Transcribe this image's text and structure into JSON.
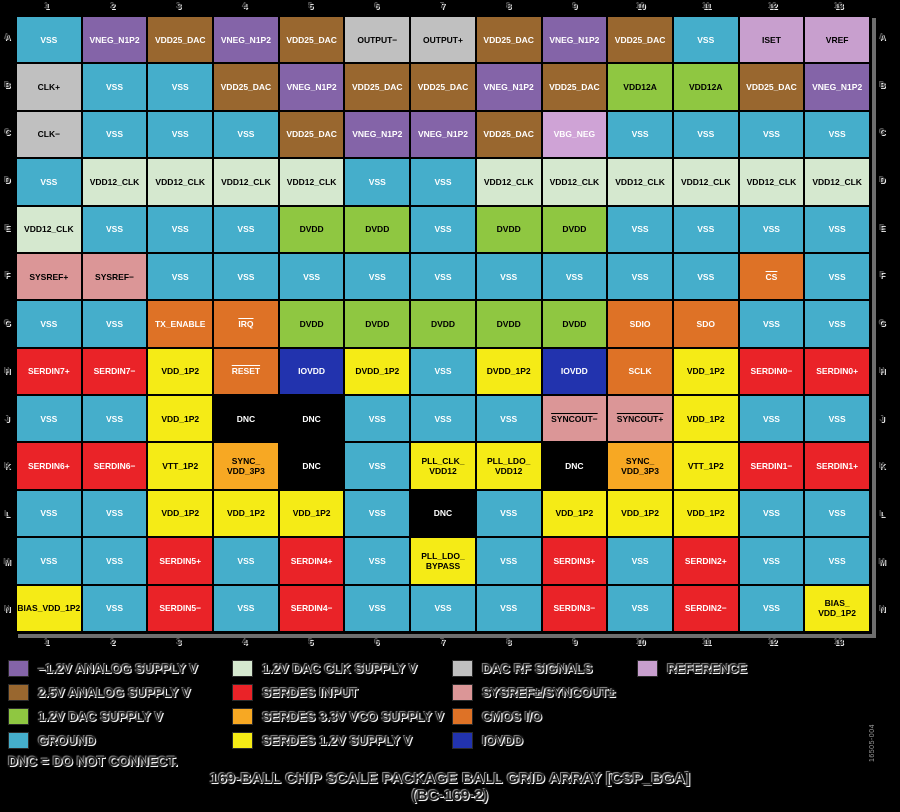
{
  "grid": {
    "col_labels": [
      "1",
      "2",
      "3",
      "4",
      "5",
      "6",
      "7",
      "8",
      "9",
      "10",
      "11",
      "12",
      "13"
    ],
    "row_labels": [
      "A",
      "B",
      "C",
      "D",
      "E",
      "F",
      "G",
      "H",
      "J",
      "K",
      "L",
      "M",
      "N"
    ],
    "rows": [
      {
        "label": "A",
        "cells": [
          [
            "VSS",
            "gnd"
          ],
          [
            "VNEG_N1P2",
            "neg"
          ],
          [
            "VDD25_DAC",
            "v25"
          ],
          [
            "VNEG_N1P2",
            "neg"
          ],
          [
            "VDD25_DAC",
            "v25"
          ],
          [
            "OUTPUT−",
            "rf"
          ],
          [
            "OUTPUT+",
            "rf"
          ],
          [
            "VDD25_DAC",
            "v25"
          ],
          [
            "VNEG_N1P2",
            "neg"
          ],
          [
            "VDD25_DAC",
            "v25"
          ],
          [
            "VSS",
            "gnd"
          ],
          [
            "ISET",
            "ref"
          ],
          [
            "VREF",
            "ref"
          ]
        ]
      },
      {
        "label": "B",
        "cells": [
          [
            "CLK+",
            "rf"
          ],
          [
            "VSS",
            "gnd"
          ],
          [
            "VSS",
            "gnd"
          ],
          [
            "VDD25_DAC",
            "v25"
          ],
          [
            "VNEG_N1P2",
            "neg"
          ],
          [
            "VDD25_DAC",
            "v25"
          ],
          [
            "VDD25_DAC",
            "v25"
          ],
          [
            "VNEG_N1P2",
            "neg"
          ],
          [
            "VDD25_DAC",
            "v25"
          ],
          [
            "VDD12A",
            "dac"
          ],
          [
            "VDD12A",
            "dac"
          ],
          [
            "VDD25_DAC",
            "v25"
          ],
          [
            "VNEG_N1P2",
            "neg"
          ]
        ]
      },
      {
        "label": "C",
        "cells": [
          [
            "CLK−",
            "rf"
          ],
          [
            "VSS",
            "gnd"
          ],
          [
            "VSS",
            "gnd"
          ],
          [
            "VSS",
            "gnd"
          ],
          [
            "VDD25_DAC",
            "v25"
          ],
          [
            "VNEG_N1P2",
            "neg"
          ],
          [
            "VNEG_N1P2",
            "neg"
          ],
          [
            "VDD25_DAC",
            "v25"
          ],
          [
            "VBG_NEG",
            "refw"
          ],
          [
            "VSS",
            "gnd"
          ],
          [
            "VSS",
            "gnd"
          ],
          [
            "VSS",
            "gnd"
          ],
          [
            "VSS",
            "gnd"
          ]
        ]
      },
      {
        "label": "D",
        "cells": [
          [
            "VSS",
            "gnd"
          ],
          [
            "VDD12_CLK",
            "clk"
          ],
          [
            "VDD12_CLK",
            "clk"
          ],
          [
            "VDD12_CLK",
            "clk"
          ],
          [
            "VDD12_CLK",
            "clk"
          ],
          [
            "VSS",
            "gnd"
          ],
          [
            "VSS",
            "gnd"
          ],
          [
            "VDD12_CLK",
            "clk"
          ],
          [
            "VDD12_CLK",
            "clk"
          ],
          [
            "VDD12_CLK",
            "clk"
          ],
          [
            "VDD12_CLK",
            "clk"
          ],
          [
            "VDD12_CLK",
            "clk"
          ],
          [
            "VDD12_CLK",
            "clk"
          ]
        ]
      },
      {
        "label": "E",
        "cells": [
          [
            "VDD12_CLK",
            "clk"
          ],
          [
            "VSS",
            "gnd"
          ],
          [
            "VSS",
            "gnd"
          ],
          [
            "VSS",
            "gnd"
          ],
          [
            "DVDD",
            "dac"
          ],
          [
            "DVDD",
            "dac"
          ],
          [
            "VSS",
            "gnd"
          ],
          [
            "DVDD",
            "dac"
          ],
          [
            "DVDD",
            "dac"
          ],
          [
            "VSS",
            "gnd"
          ],
          [
            "VSS",
            "gnd"
          ],
          [
            "VSS",
            "gnd"
          ],
          [
            "VSS",
            "gnd"
          ]
        ]
      },
      {
        "label": "F",
        "cells": [
          [
            "SYSREF+",
            "pink"
          ],
          [
            "SYSREF−",
            "pink"
          ],
          [
            "VSS",
            "gnd"
          ],
          [
            "VSS",
            "gnd"
          ],
          [
            "VSS",
            "gnd"
          ],
          [
            "VSS",
            "gnd"
          ],
          [
            "VSS",
            "gnd"
          ],
          [
            "VSS",
            "gnd"
          ],
          [
            "VSS",
            "gnd"
          ],
          [
            "VSS",
            "gnd"
          ],
          [
            "VSS",
            "gnd"
          ],
          [
            "CS",
            "cmos",
            "ov"
          ],
          [
            "VSS",
            "gnd"
          ]
        ]
      },
      {
        "label": "G",
        "cells": [
          [
            "VSS",
            "gnd"
          ],
          [
            "VSS",
            "gnd"
          ],
          [
            "TX_ENABLE",
            "cmos"
          ],
          [
            "IRQ",
            "cmos",
            "ov"
          ],
          [
            "DVDD",
            "dac"
          ],
          [
            "DVDD",
            "dac"
          ],
          [
            "DVDD",
            "dac"
          ],
          [
            "DVDD",
            "dac"
          ],
          [
            "DVDD",
            "dac"
          ],
          [
            "SDIO",
            "cmos"
          ],
          [
            "SDO",
            "cmos"
          ],
          [
            "VSS",
            "gnd"
          ],
          [
            "VSS",
            "gnd"
          ]
        ]
      },
      {
        "label": "H",
        "cells": [
          [
            "SERDIN7+",
            "ser"
          ],
          [
            "SERDIN7−",
            "ser"
          ],
          [
            "VDD_1P2",
            "y12"
          ],
          [
            "RESET",
            "cmos",
            "ov"
          ],
          [
            "IOVDD",
            "iovdd"
          ],
          [
            "DVDD_1P2",
            "y12"
          ],
          [
            "VSS",
            "gnd"
          ],
          [
            "DVDD_1P2",
            "y12"
          ],
          [
            "IOVDD",
            "iovdd"
          ],
          [
            "SCLK",
            "cmos"
          ],
          [
            "VDD_1P2",
            "y12"
          ],
          [
            "SERDIN0−",
            "ser"
          ],
          [
            "SERDIN0+",
            "ser"
          ]
        ]
      },
      {
        "label": "J",
        "cells": [
          [
            "VSS",
            "gnd"
          ],
          [
            "VSS",
            "gnd"
          ],
          [
            "VDD_1P2",
            "y12"
          ],
          [
            "DNC",
            "dnc"
          ],
          [
            "DNC",
            "dnc"
          ],
          [
            "VSS",
            "gnd"
          ],
          [
            "VSS",
            "gnd"
          ],
          [
            "VSS",
            "gnd"
          ],
          [
            "SYNCOUT−",
            "pink",
            "ov"
          ],
          [
            "SYNCOUT+",
            "pink",
            "ov"
          ],
          [
            "VDD_1P2",
            "y12"
          ],
          [
            "VSS",
            "gnd"
          ],
          [
            "VSS",
            "gnd"
          ]
        ]
      },
      {
        "label": "K",
        "cells": [
          [
            "SERDIN6+",
            "ser"
          ],
          [
            "SERDIN6−",
            "ser"
          ],
          [
            "VTT_1P2",
            "y12"
          ],
          [
            "SYNC_\nVDD_3P3",
            "vco"
          ],
          [
            "DNC",
            "dnc"
          ],
          [
            "VSS",
            "gnd"
          ],
          [
            "PLL_CLK_\nVDD12",
            "y12"
          ],
          [
            "PLL_LDO_\nVDD12",
            "y12"
          ],
          [
            "DNC",
            "dnc"
          ],
          [
            "SYNC_\nVDD_3P3",
            "vco"
          ],
          [
            "VTT_1P2",
            "y12"
          ],
          [
            "SERDIN1−",
            "ser"
          ],
          [
            "SERDIN1+",
            "ser"
          ]
        ]
      },
      {
        "label": "L",
        "cells": [
          [
            "VSS",
            "gnd"
          ],
          [
            "VSS",
            "gnd"
          ],
          [
            "VDD_1P2",
            "y12"
          ],
          [
            "VDD_1P2",
            "y12"
          ],
          [
            "VDD_1P2",
            "y12"
          ],
          [
            "VSS",
            "gnd"
          ],
          [
            "DNC",
            "dnc"
          ],
          [
            "VSS",
            "gnd"
          ],
          [
            "VDD_1P2",
            "y12"
          ],
          [
            "VDD_1P2",
            "y12"
          ],
          [
            "VDD_1P2",
            "y12"
          ],
          [
            "VSS",
            "gnd"
          ],
          [
            "VSS",
            "gnd"
          ]
        ]
      },
      {
        "label": "M",
        "cells": [
          [
            "VSS",
            "gnd"
          ],
          [
            "VSS",
            "gnd"
          ],
          [
            "SERDIN5+",
            "ser"
          ],
          [
            "VSS",
            "gnd"
          ],
          [
            "SERDIN4+",
            "ser"
          ],
          [
            "VSS",
            "gnd"
          ],
          [
            "PLL_LDO_\nBYPASS",
            "y12"
          ],
          [
            "VSS",
            "gnd"
          ],
          [
            "SERDIN3+",
            "ser"
          ],
          [
            "VSS",
            "gnd"
          ],
          [
            "SERDIN2+",
            "ser"
          ],
          [
            "VSS",
            "gnd"
          ],
          [
            "VSS",
            "gnd"
          ]
        ]
      },
      {
        "label": "N",
        "cells": [
          [
            "BIAS_VDD_1P2",
            "y12"
          ],
          [
            "VSS",
            "gnd"
          ],
          [
            "SERDIN5−",
            "ser"
          ],
          [
            "VSS",
            "gnd"
          ],
          [
            "SERDIN4−",
            "ser"
          ],
          [
            "VSS",
            "gnd"
          ],
          [
            "VSS",
            "gnd"
          ],
          [
            "VSS",
            "gnd"
          ],
          [
            "SERDIN3−",
            "ser"
          ],
          [
            "VSS",
            "gnd"
          ],
          [
            "SERDIN2−",
            "ser"
          ],
          [
            "VSS",
            "gnd"
          ],
          [
            "BIAS_\nVDD_1P2",
            "y12"
          ]
        ]
      }
    ]
  },
  "colors": {
    "gnd": {
      "bg": "#45AECB",
      "fg": "#FFFFFF"
    },
    "neg": {
      "bg": "#8464A8",
      "fg": "#FFFFFF"
    },
    "v25": {
      "bg": "#99672F",
      "fg": "#FFFFFF"
    },
    "rf": {
      "bg": "#C0C0C0",
      "fg": "#000000"
    },
    "ref": {
      "bg": "#C89FCE",
      "fg": "#000000"
    },
    "refw": {
      "bg": "#CFA3D6",
      "fg": "#FFFFFF"
    },
    "dac": {
      "bg": "#8FC741",
      "fg": "#000000"
    },
    "clk": {
      "bg": "#D5E8CF",
      "fg": "#000000"
    },
    "pink": {
      "bg": "#DB9697",
      "fg": "#000000"
    },
    "cmos": {
      "bg": "#DE7226",
      "fg": "#FFFFFF"
    },
    "iovdd": {
      "bg": "#2233AE",
      "fg": "#FFFFFF"
    },
    "ser": {
      "bg": "#EA2328",
      "fg": "#FFFFFF"
    },
    "y12": {
      "bg": "#F5EB16",
      "fg": "#000000"
    },
    "vco": {
      "bg": "#F7A823",
      "fg": "#000000"
    },
    "dnc": {
      "bg": "#000000",
      "fg": "#FFFFFF"
    }
  },
  "legend": {
    "columns": [
      {
        "items": [
          {
            "swatch": "neg",
            "label": "–1.2V ANALOG SUPPLY V"
          },
          {
            "swatch": "v25",
            "label": "2.5V ANALOG SUPPLY V"
          },
          {
            "swatch": "dac",
            "label": "1.2V DAC SUPPLY V"
          },
          {
            "swatch": "gnd",
            "label": "GROUND"
          }
        ]
      },
      {
        "items": [
          {
            "swatch": "clk",
            "label": "1.2V DAC CLK SUPPLY V"
          },
          {
            "swatch": "ser",
            "label": "SERDES INPUT"
          },
          {
            "swatch": "vco",
            "label": "SERDES 3.3V VCO SUPPLY V"
          },
          {
            "swatch": "y12",
            "label": "SERDES 1.2V SUPPLY V"
          }
        ]
      },
      {
        "items": [
          {
            "swatch": "rf",
            "label": "DAC RF SIGNALS"
          },
          {
            "swatch": "pink",
            "label": "SYSREF±/SYNCOUT±"
          },
          {
            "swatch": "cmos",
            "label": "CMOS  I/O"
          },
          {
            "swatch": "iovdd",
            "label": "IOVDD"
          }
        ]
      },
      {
        "items": [
          {
            "swatch": "ref",
            "label": "REFERENCE"
          }
        ]
      }
    ]
  },
  "dnc_note": "DNC = DO NOT CONNECT.",
  "title_line1": "169-BALL CHIP SCALE PACKAGE BALL GRID ARRAY [CSP_BGA]",
  "title_line2": "(BC-169-2)",
  "figure_code": "16505-004"
}
